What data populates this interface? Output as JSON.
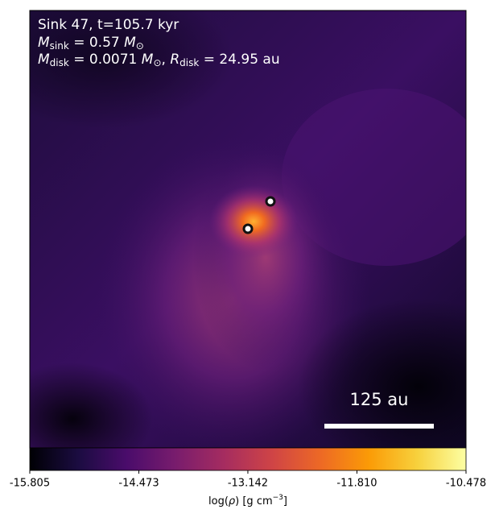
{
  "chart_data": {
    "type": "image",
    "annotations": [
      [
        "Sink 47, t=105.7 kyr"
      ],
      [
        "M",
        "sink",
        " = 0.57 ",
        "M",
        "⊙"
      ],
      [
        "M",
        "disk",
        " = 0.0071 ",
        "M",
        "⊙",
        ", ",
        "R",
        "disk",
        " = 24.95 au"
      ]
    ],
    "scale_bar_label": "125 au",
    "colorbar": {
      "label": [
        "log(",
        "ρ",
        ") [g cm",
        "−3",
        "]"
      ],
      "lim": [
        -15.805,
        -10.478
      ],
      "ticks": [
        -15.805,
        -14.473,
        -13.142,
        {
          "value": -11.81,
          "label": "-11.810"
        },
        -10.478
      ],
      "colormap": "inferno"
    }
  }
}
